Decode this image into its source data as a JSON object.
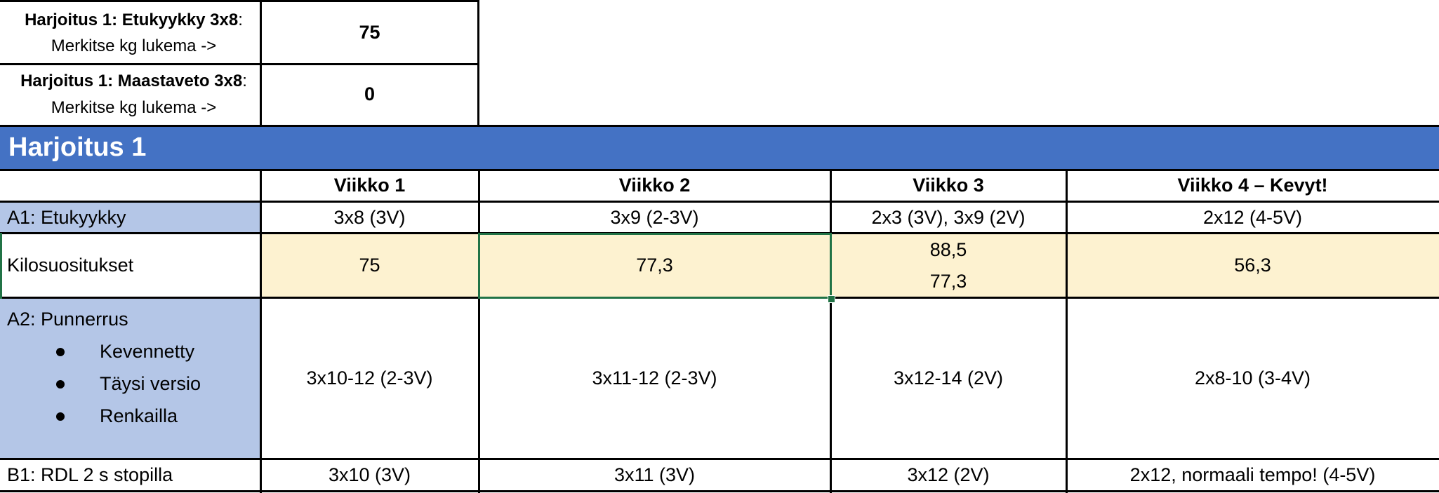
{
  "inputs": {
    "squat": {
      "label_bold": "Harjoitus 1: Etukyykky 3x8",
      "label_rest": ": Merkitse kg lukema ->",
      "value": "75"
    },
    "deadlift": {
      "label_bold": "Harjoitus 1: Maastaveto 3x8",
      "label_rest": ": Merkitse kg lukema ->",
      "value": "0"
    }
  },
  "banner": {
    "title": "Harjoitus 1",
    "color": "#4472c4"
  },
  "table": {
    "headers": [
      "",
      "Viikko 1",
      "Viikko 2",
      "Viikko 3",
      "Viikko 4 – Kevyt!"
    ],
    "rows": {
      "a1": {
        "label": "A1: Etukyykky",
        "cells": [
          "3x8 (3V)",
          "3x9 (2-3V)",
          "2x3 (3V), 3x9 (2V)",
          "2x12 (4-5V)"
        ]
      },
      "kilo": {
        "label": "Kilosuositukset",
        "cells": [
          "75",
          "77,3",
          "88,5",
          "56,3"
        ],
        "week3_second": "77,3"
      },
      "a2": {
        "label": "A2: Punnerrus",
        "bullets": [
          "Kevennetty",
          "Täysi versio",
          "Renkailla"
        ],
        "cells": [
          "3x10-12 (2-3V)",
          "3x11-12 (2-3V)",
          "3x12-14 (2V)",
          "2x8-10 (3-4V)"
        ]
      },
      "b1": {
        "label": "B1: RDL 2 s stopilla",
        "cells": [
          "3x10 (3V)",
          "3x11 (3V)",
          "3x12 (2V)",
          "2x12, normaali tempo! (4-5V)"
        ]
      }
    }
  },
  "colors": {
    "label_fill": "#b4c6e7",
    "highlight_fill": "#fdf2d0",
    "selection": "#217346"
  }
}
